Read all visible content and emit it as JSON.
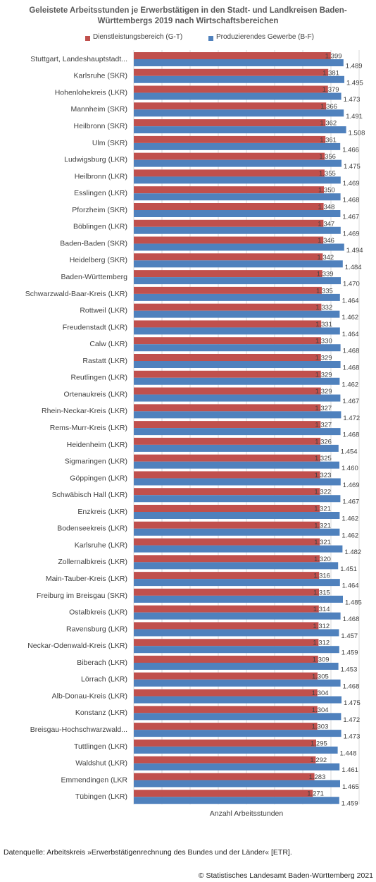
{
  "chart_data": {
    "type": "bar",
    "orientation": "horizontal",
    "title": "Geleistete Arbeitsstunden je Erwerbstätigen in den Stadt- und Landkreisen Baden-Württembergs 2019 nach Wirtschaftsbereichen",
    "xlabel": "Anzahl Arbeitsstunden",
    "legend_position": "top",
    "grid": true,
    "xlim": [
      0,
      1600
    ],
    "categories": [
      "Stuttgart, Landeshauptstadt...",
      "Karlsruhe (SKR)",
      "Hohenlohekreis (LKR)",
      "Mannheim (SKR)",
      "Heilbronn (SKR)",
      "Ulm (SKR)",
      "Ludwigsburg (LKR)",
      "Heilbronn (LKR)",
      "Esslingen (LKR)",
      "Pforzheim (SKR)",
      "Böblingen (LKR)",
      "Baden-Baden (SKR)",
      "Heidelberg (SKR)",
      "Baden-Württemberg",
      "Schwarzwald-Baar-Kreis (LKR)",
      "Rottweil (LKR)",
      "Freudenstadt (LKR)",
      "Calw (LKR)",
      "Rastatt (LKR)",
      "Reutlingen (LKR)",
      "Ortenaukreis (LKR)",
      "Rhein-Neckar-Kreis (LKR)",
      "Rems-Murr-Kreis (LKR)",
      "Heidenheim (LKR)",
      "Sigmaringen (LKR)",
      "Göppingen (LKR)",
      "Schwäbisch Hall (LKR)",
      "Enzkreis (LKR)",
      "Bodenseekreis (LKR)",
      "Karlsruhe (LKR)",
      "Zollernalbkreis (LKR)",
      "Main-Tauber-Kreis (LKR)",
      "Freiburg im Breisgau (SKR)",
      "Ostalbkreis (LKR)",
      "Ravensburg (LKR)",
      "Neckar-Odenwald-Kreis (LKR)",
      "Biberach (LKR)",
      "Lörrach (LKR)",
      "Alb-Donau-Kreis (LKR)",
      "Konstanz (LKR)",
      "Breisgau-Hochschwarzwald...",
      "Tuttlingen (LKR)",
      "Waldshut (LKR)",
      "Emmendingen (LKR",
      "Tübingen (LKR)"
    ],
    "series": [
      {
        "name": "Dienstleistungsbereich (G-T)",
        "color": "#c0504d",
        "values": [
          1399,
          1381,
          1379,
          1366,
          1362,
          1361,
          1356,
          1355,
          1350,
          1348,
          1347,
          1346,
          1342,
          1339,
          1335,
          1332,
          1331,
          1330,
          1329,
          1329,
          1329,
          1327,
          1327,
          1326,
          1325,
          1323,
          1322,
          1321,
          1321,
          1321,
          1320,
          1316,
          1315,
          1314,
          1312,
          1312,
          1309,
          1305,
          1304,
          1304,
          1303,
          1295,
          1292,
          1283,
          1271
        ],
        "labels": [
          "1.399",
          "1.381",
          "1.379",
          "1.366",
          "1.362",
          "1.361",
          "1.356",
          "1.355",
          "1.350",
          "1.348",
          "1.347",
          "1.346",
          "1.342",
          "1.339",
          "1.335",
          "1.332",
          "1.331",
          "1.330",
          "1.329",
          "1.329",
          "1.329",
          "1.327",
          "1.327",
          "1.326",
          "1.325",
          "1.323",
          "1.322",
          "1.321",
          "1.321",
          "1.321",
          "1.320",
          "1.316",
          "1.315",
          "1.314",
          "1.312",
          "1.312",
          "1.309",
          "1.305",
          "1.304",
          "1.304",
          "1.303",
          "1.295",
          "1.292",
          "1.283",
          "1.271"
        ]
      },
      {
        "name": "Produzierendes Gewerbe (B-F)",
        "color": "#4f81bd",
        "values": [
          1489,
          1495,
          1473,
          1491,
          1508,
          1466,
          1475,
          1469,
          1468,
          1467,
          1469,
          1494,
          1484,
          1470,
          1464,
          1462,
          1464,
          1468,
          1468,
          1462,
          1467,
          1472,
          1468,
          1454,
          1460,
          1469,
          1467,
          1462,
          1462,
          1482,
          1451,
          1464,
          1485,
          1468,
          1457,
          1459,
          1453,
          1468,
          1475,
          1472,
          1473,
          1448,
          1461,
          1465,
          1459
        ],
        "labels": [
          "1.489",
          "1.495",
          "1.473",
          "1.491",
          "1.508",
          "1.466",
          "1.475",
          "1.469",
          "1.468",
          "1.467",
          "1.469",
          "1.494",
          "1.484",
          "1.470",
          "1.464",
          "1.462",
          "1.464",
          "1.468",
          "1.468",
          "1.462",
          "1.467",
          "1.472",
          "1.468",
          "1.454",
          "1.460",
          "1.469",
          "1.467",
          "1.462",
          "1.462",
          "1.482",
          "1.451",
          "1.464",
          "1.485",
          "1.468",
          "1.457",
          "1.459",
          "1.453",
          "1.468",
          "1.475",
          "1.472",
          "1.473",
          "1.448",
          "1.461",
          "1.465",
          "1.459"
        ]
      }
    ]
  },
  "footer": {
    "source": "Datenquelle: Arbeitskreis »Erwerbstätigenrechnung des Bundes und der Länder« [ETR].",
    "copyright": "© Statistisches Landesamt Baden-Württemberg 2021"
  }
}
